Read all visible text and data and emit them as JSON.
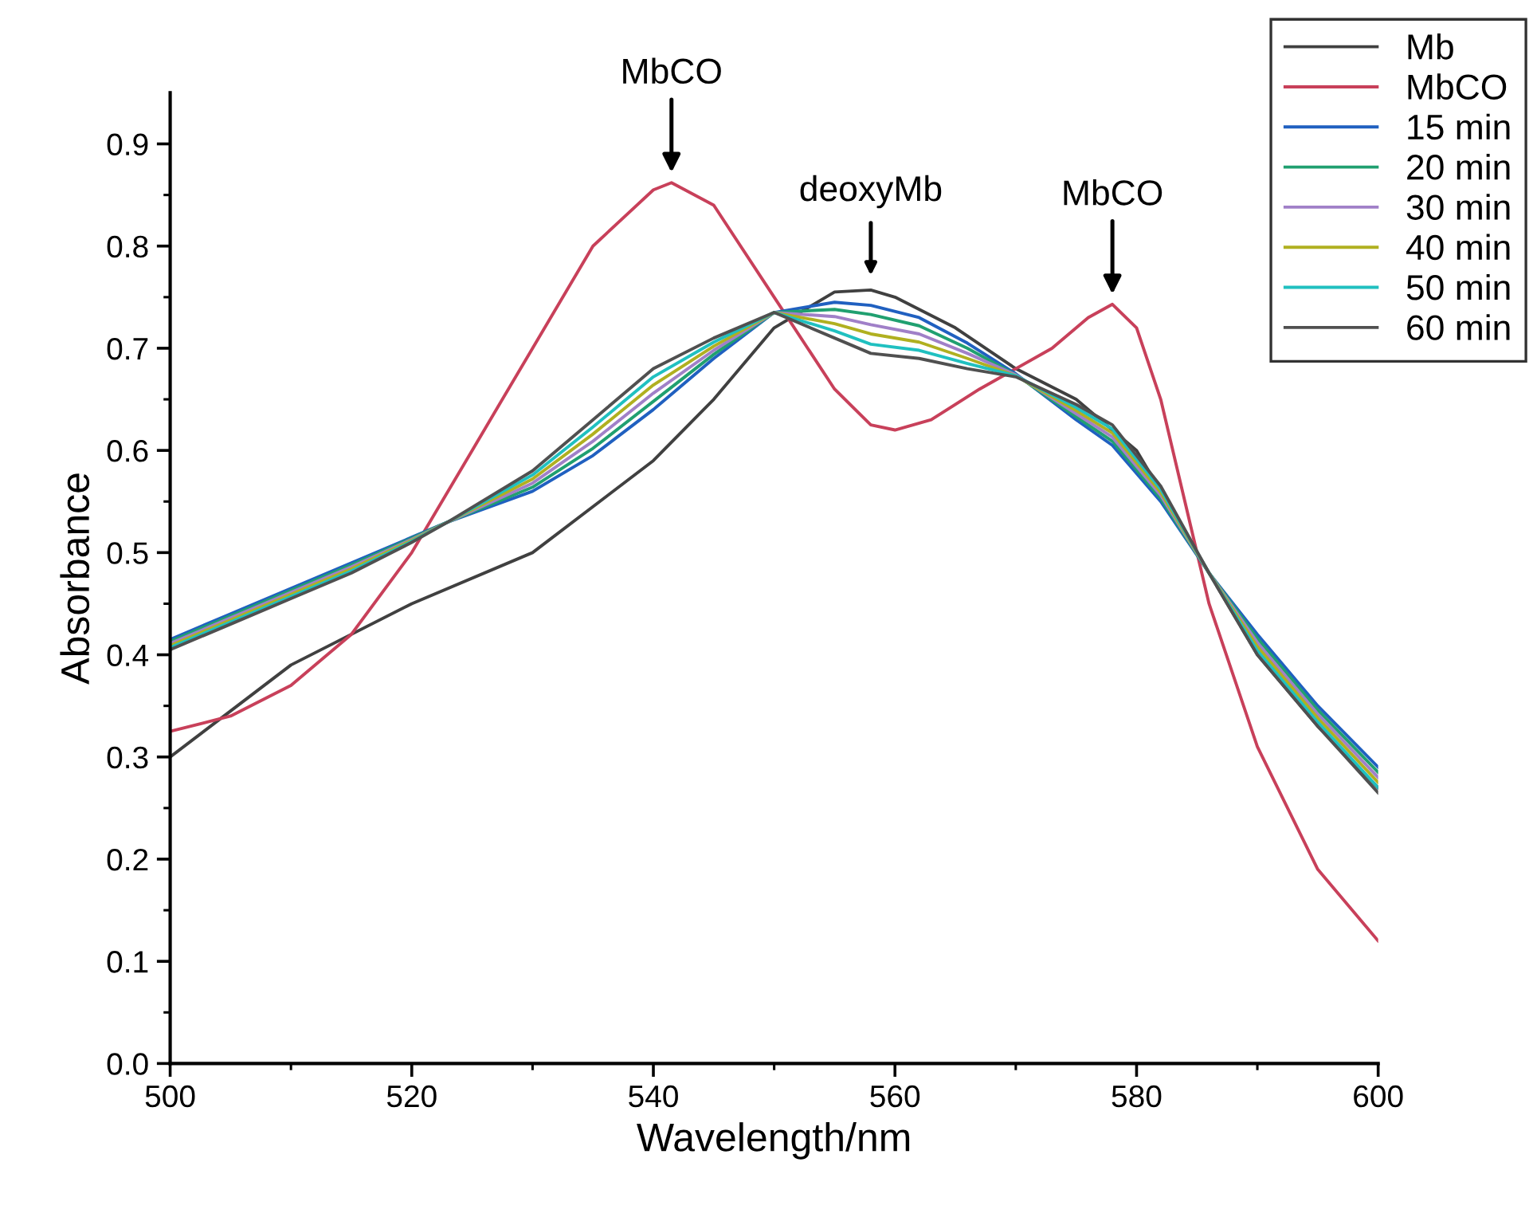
{
  "chart_data": {
    "type": "line",
    "xlabel": "Wavelength/nm",
    "ylabel": "Absorbance",
    "xlim": [
      500,
      600
    ],
    "xticks": [
      500,
      520,
      540,
      560,
      580,
      600
    ],
    "ylim": [
      0,
      0.95
    ],
    "yticks": [
      {
        "value": 0,
        "label": "0.0"
      },
      0.1,
      0.2,
      0.3,
      0.4,
      0.5,
      0.6,
      0.7,
      0.8,
      0.9
    ],
    "grid": false,
    "legend": "top right",
    "marker": "none",
    "line_style": "solid",
    "x": [
      500,
      505,
      510,
      515,
      520,
      523,
      530,
      535,
      540,
      545,
      550,
      555,
      558,
      562,
      566,
      570,
      575,
      578,
      582,
      586,
      590,
      595,
      600
    ],
    "series": [
      {
        "name": "Mb",
        "color": "#404040",
        "x": [
          500,
          510,
          520,
          530,
          540,
          545,
          550,
          555,
          558,
          560,
          565,
          570,
          575,
          580,
          585,
          590,
          595,
          600
        ],
        "values": [
          0.3,
          0.39,
          0.45,
          0.5,
          0.59,
          0.65,
          0.72,
          0.755,
          0.757,
          0.75,
          0.72,
          0.68,
          0.65,
          0.6,
          0.5,
          0.4,
          0.33,
          0.27
        ]
      },
      {
        "name": "MbCO",
        "color": "#c8405a",
        "x": [
          500,
          505,
          510,
          515,
          520,
          525,
          530,
          535,
          540,
          541.5,
          545,
          550,
          555,
          558,
          560,
          563,
          567,
          570,
          573,
          576,
          578,
          580,
          582,
          584,
          586,
          588,
          590,
          595,
          600
        ],
        "values": [
          0.325,
          0.34,
          0.37,
          0.42,
          0.5,
          0.6,
          0.7,
          0.8,
          0.855,
          0.862,
          0.84,
          0.75,
          0.66,
          0.625,
          0.62,
          0.63,
          0.66,
          0.68,
          0.7,
          0.73,
          0.743,
          0.72,
          0.65,
          0.55,
          0.45,
          0.38,
          0.31,
          0.19,
          0.12
        ]
      },
      {
        "name": "15 min",
        "color": "#2060c0",
        "values": [
          0.415,
          0.44,
          0.465,
          0.49,
          0.515,
          0.53,
          0.56,
          0.595,
          0.64,
          0.69,
          0.735,
          0.745,
          0.742,
          0.73,
          0.705,
          0.675,
          0.63,
          0.605,
          0.55,
          0.48,
          0.42,
          0.35,
          0.29
        ]
      },
      {
        "name": "20 min",
        "color": "#20a070",
        "values": [
          0.413,
          0.438,
          0.463,
          0.488,
          0.514,
          0.53,
          0.564,
          0.602,
          0.648,
          0.694,
          0.735,
          0.738,
          0.733,
          0.722,
          0.7,
          0.674,
          0.633,
          0.609,
          0.553,
          0.48,
          0.416,
          0.346,
          0.285
        ]
      },
      {
        "name": "30 min",
        "color": "#a080c8",
        "values": [
          0.411,
          0.436,
          0.461,
          0.486,
          0.513,
          0.53,
          0.568,
          0.609,
          0.656,
          0.698,
          0.735,
          0.731,
          0.723,
          0.714,
          0.695,
          0.674,
          0.636,
          0.613,
          0.556,
          0.48,
          0.412,
          0.342,
          0.28
        ]
      },
      {
        "name": "40 min",
        "color": "#b0b020",
        "values": [
          0.409,
          0.434,
          0.459,
          0.484,
          0.512,
          0.53,
          0.572,
          0.616,
          0.664,
          0.702,
          0.735,
          0.724,
          0.714,
          0.706,
          0.69,
          0.673,
          0.639,
          0.617,
          0.559,
          0.48,
          0.408,
          0.338,
          0.275
        ]
      },
      {
        "name": "50 min",
        "color": "#20c0c0",
        "values": [
          0.407,
          0.432,
          0.457,
          0.482,
          0.511,
          0.53,
          0.576,
          0.623,
          0.672,
          0.706,
          0.735,
          0.717,
          0.704,
          0.698,
          0.685,
          0.673,
          0.642,
          0.621,
          0.562,
          0.48,
          0.404,
          0.334,
          0.27
        ]
      },
      {
        "name": "60 min",
        "color": "#505050",
        "values": [
          0.405,
          0.43,
          0.455,
          0.48,
          0.51,
          0.53,
          0.58,
          0.63,
          0.68,
          0.71,
          0.735,
          0.71,
          0.695,
          0.69,
          0.68,
          0.672,
          0.645,
          0.625,
          0.565,
          0.48,
          0.4,
          0.33,
          0.265
        ]
      }
    ],
    "annotations": [
      {
        "text": "MbCO",
        "x": 541.5,
        "y": 0.862
      },
      {
        "text": "deoxyMb",
        "x": 558,
        "y": 0.757
      },
      {
        "text": "MbCO",
        "x": 578,
        "y": 0.743
      }
    ]
  }
}
